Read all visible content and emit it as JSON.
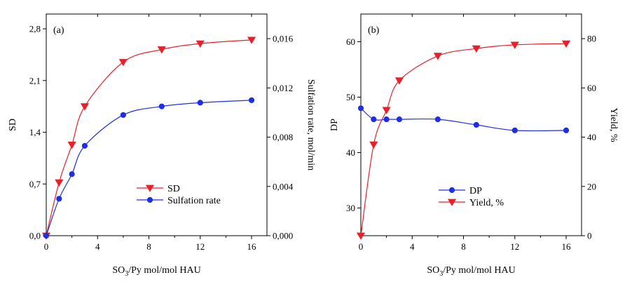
{
  "chart_data": [
    {
      "type": "line",
      "panel_label": "(a)",
      "xlabel": {
        "base": "SO",
        "sub": "3",
        "rest": "/Py mol/mol HAU"
      },
      "ylabel_left": "SD",
      "ylabel_right": "Sulfation rate, mol/min",
      "xlim": [
        0,
        17.2
      ],
      "ylim_left": [
        0,
        3.0
      ],
      "ylim_right": [
        0,
        0.018
      ],
      "x_ticks": [
        "0",
        "4",
        "8",
        "12",
        "16"
      ],
      "y_ticks_left": [
        "0,0",
        "0,7",
        "1,4",
        "2,1",
        "2,8"
      ],
      "y_ticks_right": [
        "0,000",
        "0,004",
        "0,008",
        "0,012",
        "0,016"
      ],
      "legend_position": "lower-right",
      "series": [
        {
          "name": "SD",
          "axis": "left",
          "marker": "triangle-down",
          "color": "#e8202a",
          "x": [
            0,
            1,
            2,
            3,
            6,
            9,
            12,
            16
          ],
          "y": [
            0.0,
            0.72,
            1.23,
            1.75,
            2.35,
            2.52,
            2.6,
            2.65
          ]
        },
        {
          "name": "Sulfation rate",
          "axis": "right",
          "marker": "circle",
          "color": "#1f2ee0",
          "x": [
            0,
            1,
            2,
            3,
            6,
            9,
            12,
            16
          ],
          "y": [
            0.0,
            0.003,
            0.005,
            0.0073,
            0.0098,
            0.0105,
            0.0108,
            0.011
          ]
        }
      ]
    },
    {
      "type": "line",
      "panel_label": "(b)",
      "xlabel": {
        "base": "SO",
        "sub": "3",
        "rest": "/Py mol/mol HAU"
      },
      "ylabel_left": "DP",
      "ylabel_right": "Yield, %",
      "xlim": [
        0,
        17.2
      ],
      "ylim_left": [
        25.0,
        65.0
      ],
      "ylim_right": [
        0,
        90
      ],
      "x_ticks": [
        "0",
        "4",
        "8",
        "12",
        "16"
      ],
      "y_ticks_left": [
        "30",
        "40",
        "50",
        "60"
      ],
      "y_ticks_right": [
        "0",
        "20",
        "40",
        "60",
        "80"
      ],
      "legend_position": "lower-right",
      "series": [
        {
          "name": "DP",
          "axis": "left",
          "marker": "circle",
          "color": "#1f2ee0",
          "x": [
            0,
            1,
            2,
            3,
            6,
            9,
            12,
            16
          ],
          "y": [
            48,
            46,
            46,
            46,
            46,
            45,
            44,
            44
          ]
        },
        {
          "name": "Yield, %",
          "axis": "right",
          "marker": "triangle-down",
          "color": "#e8202a",
          "x": [
            0,
            1,
            2,
            3,
            6,
            9,
            12,
            16
          ],
          "y": [
            0,
            37,
            51,
            63,
            73,
            76,
            77.5,
            78
          ]
        }
      ]
    }
  ]
}
